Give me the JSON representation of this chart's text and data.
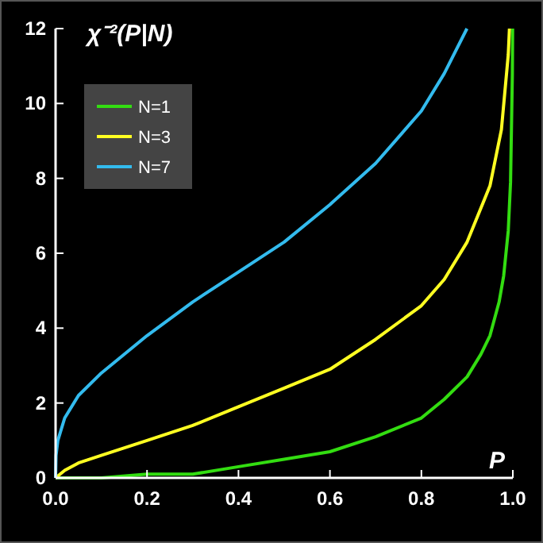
{
  "chart_data": {
    "type": "line",
    "ylabel": "χ⁻²(P|N)",
    "xlabel": "P",
    "xlim": [
      0,
      1
    ],
    "ylim": [
      0,
      12
    ],
    "xticks": [
      {
        "value": 0,
        "label": "0.0"
      },
      {
        "value": 0.2,
        "label": "0.2"
      },
      {
        "value": 0.4,
        "label": "0.4"
      },
      {
        "value": 0.6,
        "label": "0.6"
      },
      {
        "value": 0.8,
        "label": "0.8"
      },
      {
        "value": 1,
        "label": "1.0"
      }
    ],
    "yticks": [
      0,
      2,
      4,
      6,
      8,
      10,
      12
    ],
    "grid": false,
    "legend": "top left",
    "marker": "none",
    "line_style": "solid",
    "series": [
      {
        "name": "N=1",
        "color": "#33dd11",
        "x": [
          0,
          0.05,
          0.1,
          0.2,
          0.3,
          0.4,
          0.5,
          0.6,
          0.7,
          0.8,
          0.85,
          0.9,
          0.93,
          0.95,
          0.97,
          0.98,
          0.99,
          0.995,
          0.999,
          0.9995
        ],
        "values": [
          0,
          0,
          0,
          0.1,
          0.1,
          0.3,
          0.5,
          0.7,
          1.1,
          1.6,
          2.1,
          2.7,
          3.3,
          3.8,
          4.7,
          5.4,
          6.6,
          7.9,
          10.8,
          12
        ]
      },
      {
        "name": "N=3",
        "color": "#ffff22",
        "x": [
          0,
          0.01,
          0.02,
          0.05,
          0.1,
          0.2,
          0.3,
          0.4,
          0.5,
          0.6,
          0.7,
          0.8,
          0.85,
          0.9,
          0.95,
          0.975,
          0.99,
          0.9926
        ],
        "values": [
          0,
          0.1,
          0.2,
          0.4,
          0.6,
          1,
          1.4,
          1.9,
          2.4,
          2.9,
          3.7,
          4.6,
          5.3,
          6.3,
          7.8,
          9.3,
          11.3,
          12
        ]
      },
      {
        "name": "N=7",
        "color": "#33bbee",
        "x": [
          0,
          0.001,
          0.005,
          0.01,
          0.02,
          0.05,
          0.1,
          0.2,
          0.3,
          0.4,
          0.5,
          0.6,
          0.7,
          0.8,
          0.85,
          0.8997
        ],
        "values": [
          0,
          0.6,
          1,
          1.2,
          1.6,
          2.2,
          2.8,
          3.8,
          4.7,
          5.5,
          6.3,
          7.3,
          8.4,
          9.8,
          10.8,
          12
        ]
      }
    ]
  }
}
